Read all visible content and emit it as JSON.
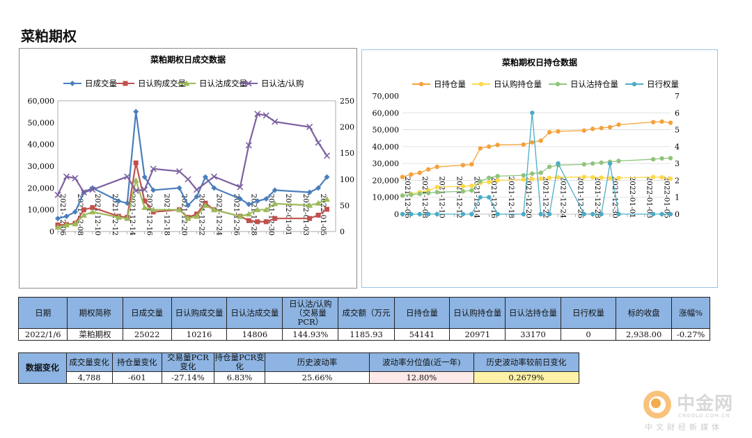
{
  "page": {
    "title": "菜粕期权"
  },
  "chart_data": [
    {
      "type": "line",
      "title": "菜粕期权日成交数据",
      "x": [
        "2021-12-06",
        "2021-12-07",
        "2021-12-08",
        "2021-12-09",
        "2021-12-10",
        "2021-12-13",
        "2021-12-14",
        "2021-12-15",
        "2021-12-16",
        "2021-12-17",
        "2021-12-20",
        "2021-12-21",
        "2021-12-22",
        "2021-12-23",
        "2021-12-24",
        "2021-12-27",
        "2021-12-28",
        "2021-12-29",
        "2021-12-30",
        "2021-12-31",
        "2022-01-04",
        "2022-01-05",
        "2022-01-06"
      ],
      "xticks": [
        "2021-12-06",
        "2021-12-08",
        "2021-12-10",
        "2021-12-12",
        "2021-12-14",
        "2021-12-16",
        "2021-12-18",
        "2021-12-20",
        "2021-12-22",
        "2021-12-24",
        "2021-12-26",
        "2021-12-28",
        "2021-12-30",
        "2022-01-01",
        "2022-01-03",
        "2022-01-05"
      ],
      "xrange": [
        "2021-12-06",
        "2022-01-07"
      ],
      "ylim": [
        0,
        60000
      ],
      "yticks": [
        "0",
        "10,000",
        "20,000",
        "30,000",
        "40,000",
        "50,000",
        "60,000"
      ],
      "y2lim": [
        0,
        250
      ],
      "y2ticks": [
        "0",
        "50",
        "100",
        "150",
        "200",
        "250"
      ],
      "legend_position": "top",
      "series": [
        {
          "name": "日成交量",
          "axis": "left",
          "color": "#4a7ebb",
          "marker": "diamond",
          "values": [
            6000,
            7000,
            9000,
            18000,
            20000,
            14000,
            13000,
            55000,
            25000,
            19000,
            20000,
            12000,
            16000,
            25000,
            20000,
            15000,
            12500,
            14000,
            15000,
            19000,
            18000,
            20000,
            25022
          ]
        },
        {
          "name": "日认购成交量",
          "axis": "left",
          "color": "#c0504d",
          "marker": "square",
          "values": [
            3000,
            3200,
            3800,
            10000,
            11000,
            7000,
            6500,
            31500,
            14000,
            9000,
            10000,
            6500,
            8000,
            13000,
            10000,
            7000,
            5000,
            4500,
            4500,
            6000,
            6000,
            7500,
            10216
          ]
        },
        {
          "name": "日认沽成交量",
          "axis": "left",
          "color": "#9bbb59",
          "marker": "triangle",
          "values": [
            2000,
            3000,
            3500,
            7500,
            9000,
            6500,
            6000,
            23500,
            11000,
            10000,
            10000,
            6000,
            7000,
            12000,
            10000,
            7000,
            8000,
            10000,
            10000,
            12800,
            12000,
            13000,
            14806
          ]
        },
        {
          "name": "日认沽/认购",
          "axis": "right",
          "color": "#7d60a0",
          "marker": "x",
          "values": [
            70,
            105,
            102,
            75,
            80,
            105,
            78,
            80,
            120,
            115,
            100,
            80,
            105,
            85,
            165,
            225,
            222,
            210,
            200,
            170,
            145
          ],
          "x": [
            "2021-12-06",
            "2021-12-07",
            "2021-12-08",
            "2021-12-09",
            "2021-12-10",
            "2021-12-14",
            "2021-12-15",
            "2021-12-16",
            "2021-12-17",
            "2021-12-20",
            "2021-12-21",
            "2021-12-22",
            "2021-12-24",
            "2021-12-27",
            "2021-12-28",
            "2021-12-29",
            "2021-12-30",
            "2021-12-31",
            "2022-01-04",
            "2022-01-05",
            "2022-01-06"
          ]
        }
      ]
    },
    {
      "type": "line",
      "title": "菜粕期权日持仓数据",
      "x": [
        "2021-12-06",
        "2021-12-07",
        "2021-12-08",
        "2021-12-09",
        "2021-12-10",
        "2021-12-13",
        "2021-12-14",
        "2021-12-15",
        "2021-12-16",
        "2021-12-17",
        "2021-12-20",
        "2021-12-21",
        "2021-12-22",
        "2021-12-23",
        "2021-12-24",
        "2021-12-27",
        "2021-12-28",
        "2021-12-29",
        "2021-12-30",
        "2021-12-31",
        "2022-01-04",
        "2022-01-05",
        "2022-01-06"
      ],
      "xticks": [
        "2021-12-06",
        "2021-12-08",
        "2021-12-10",
        "2021-12-12",
        "2021-12-14",
        "2021-12-16",
        "2021-12-18",
        "2021-12-20",
        "2021-12-22",
        "2021-12-24",
        "2021-12-26",
        "2021-12-28",
        "2021-12-30",
        "2022-01-01",
        "2022-01-03",
        "2022-01-05"
      ],
      "xrange": [
        "2021-12-06",
        "2022-01-06"
      ],
      "ylim": [
        0,
        70000
      ],
      "yticks": [
        "0",
        "10,000",
        "20,000",
        "30,000",
        "40,000",
        "50,000",
        "60,000",
        "70,000"
      ],
      "y2lim": [
        0,
        7
      ],
      "y2ticks": [
        "0",
        "1",
        "2",
        "3",
        "4",
        "5",
        "6",
        "7"
      ],
      "legend_position": "top",
      "series": [
        {
          "name": "日持仓量",
          "axis": "left",
          "color": "#f6a13a",
          "values": [
            22000,
            23500,
            24500,
            26500,
            28000,
            29000,
            29500,
            39000,
            40000,
            41000,
            41200,
            42500,
            43500,
            48500,
            49000,
            49500,
            50500,
            51000,
            51500,
            53000,
            54500,
            54800,
            54141
          ]
        },
        {
          "name": "日认购持仓量",
          "axis": "left",
          "color": "#ffd84a",
          "values": [
            11000,
            12000,
            13000,
            14000,
            16000,
            16500,
            16800,
            18500,
            19000,
            20000,
            20500,
            20800,
            21000,
            21500,
            21800,
            22000,
            21800,
            21600,
            21200,
            21400,
            22000,
            21800,
            20971
          ]
        },
        {
          "name": "日认沽持仓量",
          "axis": "left",
          "color": "#8fc47c",
          "values": [
            11000,
            11500,
            12000,
            12500,
            13000,
            13500,
            14000,
            19500,
            21500,
            22500,
            23000,
            24000,
            24500,
            28000,
            29000,
            29500,
            30000,
            30500,
            31000,
            31500,
            32500,
            33000,
            33170
          ]
        },
        {
          "name": "日行权量",
          "axis": "right",
          "color": "#4bacc6",
          "values": [
            0,
            0,
            0,
            0,
            0,
            0,
            0,
            1,
            1,
            0,
            0,
            6,
            0,
            0,
            3,
            0,
            0,
            0,
            3,
            0,
            0,
            0,
            0
          ]
        }
      ]
    }
  ],
  "table1": {
    "headers": [
      "日期",
      "期权简称",
      "日成交量",
      "日认购成交量",
      "日认沽成交量",
      "日认沽/认购（交易量PCR）",
      "成交额（万元）",
      "日持仓量",
      "日认购持仓量",
      "日认沽持仓量",
      "日行权量",
      "标的收盘",
      "涨幅%"
    ],
    "header_lines": [
      [
        "日期"
      ],
      [
        "期权简称"
      ],
      [
        "日成交量"
      ],
      [
        "日认购成交量"
      ],
      [
        "日认沽成交量"
      ],
      [
        "日认沽/认购",
        "（交易量",
        "PCR）"
      ],
      [
        "成交额（万元"
      ],
      [
        "日持仓量"
      ],
      [
        "日认购持仓量"
      ],
      [
        "日认沽持仓量"
      ],
      [
        "日行权量"
      ],
      [
        "标的收盘"
      ],
      [
        "涨幅%"
      ]
    ],
    "values": [
      "2022/1/6",
      "菜粕期权",
      "25022",
      "10216",
      "14806",
      "144.93%",
      "1185.93",
      "54141",
      "20971",
      "33170",
      "0",
      "2,938.00",
      "-0.27%"
    ]
  },
  "table2": {
    "row_header": "数据变化",
    "headers": [
      "成交量变化",
      "持仓量变化",
      "交易量PCR变化",
      "持仓量PCR变化",
      "历史波动率",
      "波动率分位值(近一年)",
      "历史波动率较前日变化"
    ],
    "header_lines": [
      [
        "成交量变化"
      ],
      [
        "持仓量变化"
      ],
      [
        "交易量PCR",
        "变化"
      ],
      [
        "持仓量PCR变",
        "化"
      ],
      [
        "历史波动率"
      ],
      [
        "波动率分位值(近一年)"
      ],
      [
        "历史波动率较前日变化"
      ]
    ],
    "values": [
      "4,788",
      "-601",
      "-27.14%",
      "6.83%",
      "25.66%",
      "12.80%",
      "0.2679%"
    ]
  },
  "watermark": {
    "name": "中金网",
    "url": "CNGOLD.COM.CN",
    "tagline": "中文财经新媒体",
    "colors": {
      "mark": "#f2a33a"
    }
  }
}
